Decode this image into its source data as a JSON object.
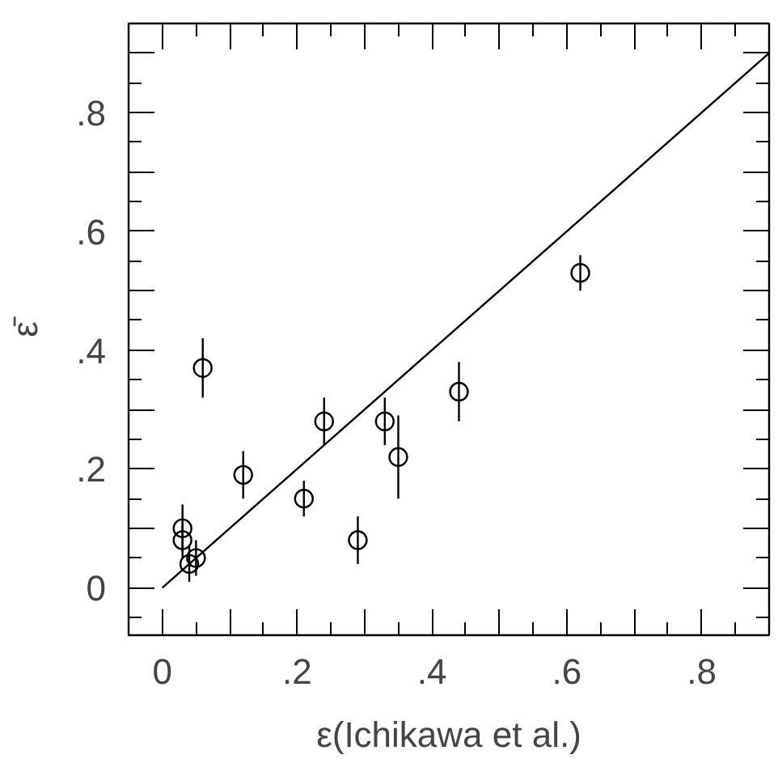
{
  "chart_data": {
    "type": "scatter",
    "xlabel": "ε(Ichikawa et al.)",
    "ylabel": "ε̄",
    "xlim": [
      -0.05,
      0.9
    ],
    "ylim": [
      -0.08,
      0.95
    ],
    "xticks": [
      0,
      {
        "value": 0.1,
        "label": null
      },
      {
        "value": 0.2,
        "label": ".2"
      },
      {
        "value": 0.3,
        "label": null
      },
      {
        "value": 0.4,
        "label": ".4"
      },
      {
        "value": 0.5,
        "label": null
      },
      {
        "value": 0.6,
        "label": ".6"
      },
      {
        "value": 0.7,
        "label": null
      },
      {
        "value": 0.8,
        "label": ".8"
      }
    ],
    "yticks": [
      0,
      {
        "value": 0.1,
        "label": null
      },
      {
        "value": 0.2,
        "label": ".2"
      },
      {
        "value": 0.3,
        "label": null
      },
      {
        "value": 0.4,
        "label": ".4"
      },
      {
        "value": 0.5,
        "label": null
      },
      {
        "value": 0.6,
        "label": ".6"
      },
      {
        "value": 0.7,
        "label": null
      },
      {
        "value": 0.8,
        "label": ".8"
      },
      {
        "value": 0.9,
        "label": null
      }
    ],
    "grid": false,
    "marker": "circle",
    "series": [
      {
        "color": "#000000",
        "x": [
          0.06,
          0.03,
          0.03,
          0.04,
          0.05,
          0.12,
          0.21,
          0.24,
          0.29,
          0.33,
          0.35,
          0.44,
          0.62
        ],
        "values": [
          0.37,
          0.1,
          0.08,
          0.04,
          0.05,
          0.19,
          0.15,
          0.28,
          0.08,
          0.28,
          0.22,
          0.33,
          0.53
        ],
        "errors": [
          0.05,
          0.04,
          0.03,
          0.03,
          0.03,
          0.04,
          0.03,
          0.04,
          0.04,
          0.04,
          0.07,
          0.05,
          0.03
        ]
      },
      {
        "type": "line",
        "color": "#000000",
        "x": [
          0,
          0.9
        ],
        "values": [
          0,
          0.9
        ],
        "marker": "none",
        "line_style": "solid"
      }
    ]
  }
}
